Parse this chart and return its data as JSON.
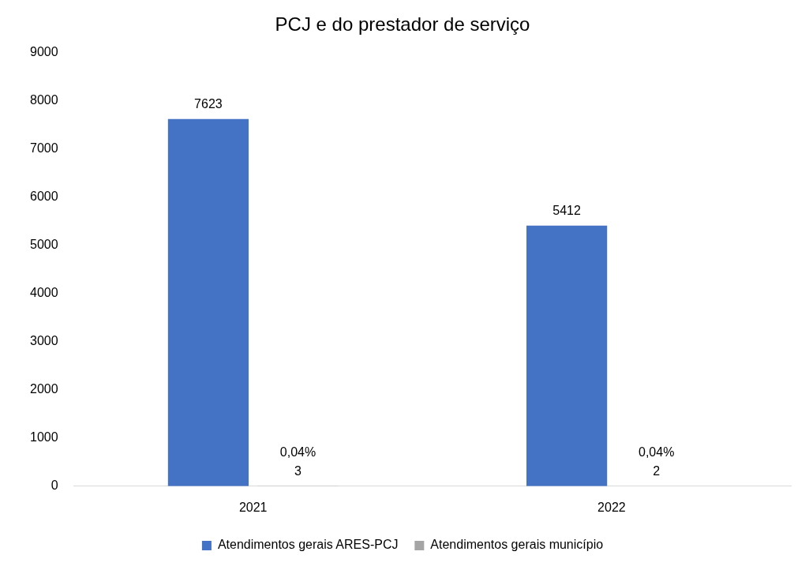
{
  "chart_data": {
    "type": "bar",
    "title": "PCJ e do prestador de serviço",
    "categories": [
      "2021",
      "2022"
    ],
    "series": [
      {
        "name": "Atendimentos gerais ARES-PCJ",
        "color": "#4472c4",
        "values": [
          7623,
          5412
        ],
        "value_labels": [
          "7623",
          "5412"
        ]
      },
      {
        "name": "Atendimentos gerais município",
        "color": "#a5a5a5",
        "values": [
          3,
          2
        ],
        "value_labels": [
          "0,04%\n3",
          "0,04%\n2"
        ]
      }
    ],
    "ylim": [
      0,
      9000
    ],
    "yticks": [
      0,
      1000,
      2000,
      3000,
      4000,
      5000,
      6000,
      7000,
      8000,
      9000
    ],
    "grid": false,
    "legend": "bottom"
  }
}
